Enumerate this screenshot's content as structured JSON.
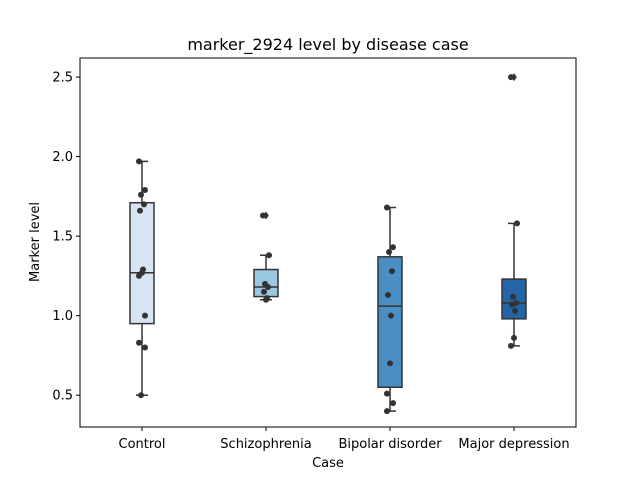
{
  "chart_data": {
    "type": "box",
    "title": "marker_2924 level by disease case",
    "xlabel": "Case",
    "ylabel": "Marker level",
    "ylim": [
      0.3,
      2.62
    ],
    "yticks": [
      0.5,
      1.0,
      1.5,
      2.0,
      2.5
    ],
    "ytick_labels": [
      "0.5",
      "1.0",
      "1.5",
      "2.0",
      "2.5"
    ],
    "grid": false,
    "legend": "none",
    "categories": [
      "Control",
      "Schizophrenia",
      "Bipolar disorder",
      "Major depression"
    ],
    "colors": [
      "#d6e4f3",
      "#9ac8e0",
      "#4a8fc4",
      "#2465a7"
    ],
    "series": [
      {
        "category": "Control",
        "whisker_low": 0.5,
        "q1": 0.95,
        "median": 1.27,
        "q3": 1.71,
        "whisker_high": 1.97,
        "outliers": [],
        "points": [
          1.97,
          1.79,
          1.76,
          1.7,
          1.66,
          1.29,
          1.27,
          1.25,
          1.0,
          0.83,
          0.8,
          0.5
        ]
      },
      {
        "category": "Schizophrenia",
        "whisker_low": 1.1,
        "q1": 1.12,
        "median": 1.18,
        "q3": 1.29,
        "whisker_high": 1.38,
        "outliers": [
          1.63
        ],
        "points": [
          1.63,
          1.38,
          1.2,
          1.18,
          1.15,
          1.11,
          1.1
        ]
      },
      {
        "category": "Bipolar disorder",
        "whisker_low": 0.4,
        "q1": 0.55,
        "median": 1.06,
        "q3": 1.37,
        "whisker_high": 1.68,
        "outliers": [],
        "points": [
          1.68,
          1.43,
          1.4,
          1.28,
          1.13,
          1.0,
          0.7,
          0.51,
          0.45,
          0.4
        ]
      },
      {
        "category": "Major depression",
        "whisker_low": 0.81,
        "q1": 0.98,
        "median": 1.08,
        "q3": 1.23,
        "whisker_high": 1.58,
        "outliers": [
          2.5
        ],
        "points": [
          2.5,
          1.58,
          1.12,
          1.08,
          1.07,
          1.03,
          0.86,
          0.81
        ]
      }
    ]
  }
}
